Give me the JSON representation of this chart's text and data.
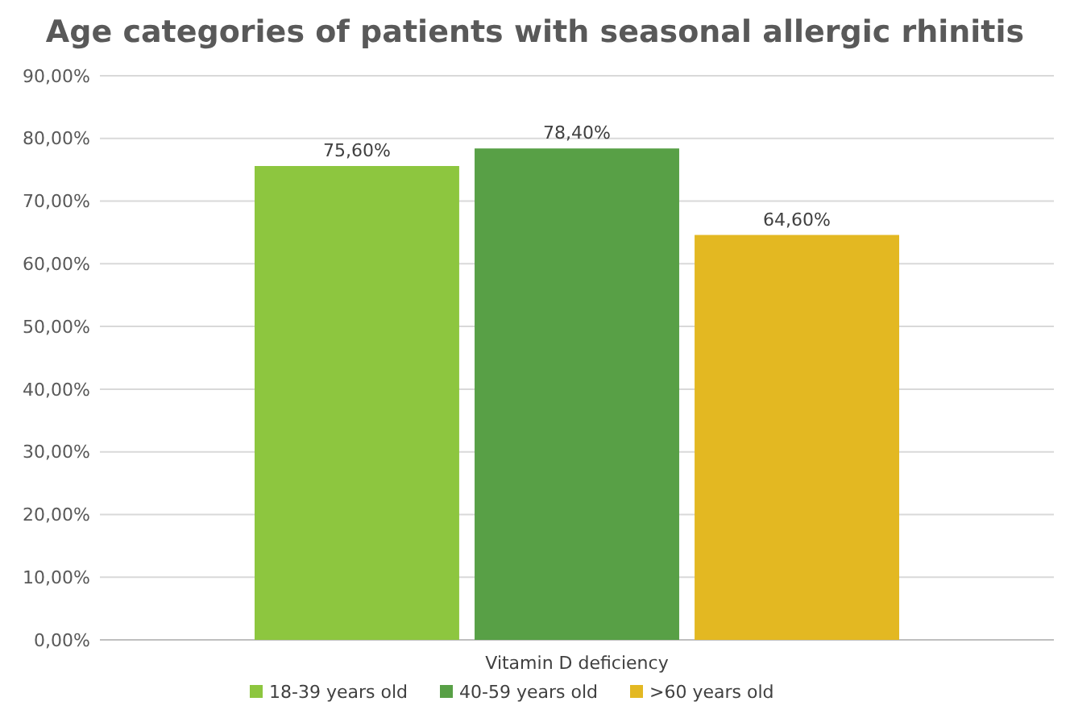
{
  "chart_data": {
    "type": "bar",
    "title": "Age categories of patients with seasonal allergic rhinitis",
    "categories": [
      "Vitamin D deficiency"
    ],
    "series": [
      {
        "name": "18-39 years old",
        "color": "#8dc63f",
        "values": [
          75.6
        ],
        "value_labels": [
          "75,60%"
        ]
      },
      {
        "name": "40-59 years old",
        "color": "#58a046",
        "values": [
          78.4
        ],
        "value_labels": [
          "78,40%"
        ]
      },
      {
        "name": ">60 years old",
        "color": "#e3b822",
        "values": [
          64.6
        ],
        "value_labels": [
          "64,60%"
        ]
      }
    ],
    "ylim": [
      0,
      90
    ],
    "yticks": [
      {
        "value": 0,
        "label": "0,00%"
      },
      {
        "value": 10,
        "label": "10,00%"
      },
      {
        "value": 20,
        "label": "20,00%"
      },
      {
        "value": 30,
        "label": "30,00%"
      },
      {
        "value": 40,
        "label": "40,00%"
      },
      {
        "value": 50,
        "label": "50,00%"
      },
      {
        "value": 60,
        "label": "60,00%"
      },
      {
        "value": 70,
        "label": "70,00%"
      },
      {
        "value": 80,
        "label": "80,00%"
      },
      {
        "value": 90,
        "label": "90,00%"
      }
    ],
    "grid": "y",
    "legend": "bottom"
  }
}
